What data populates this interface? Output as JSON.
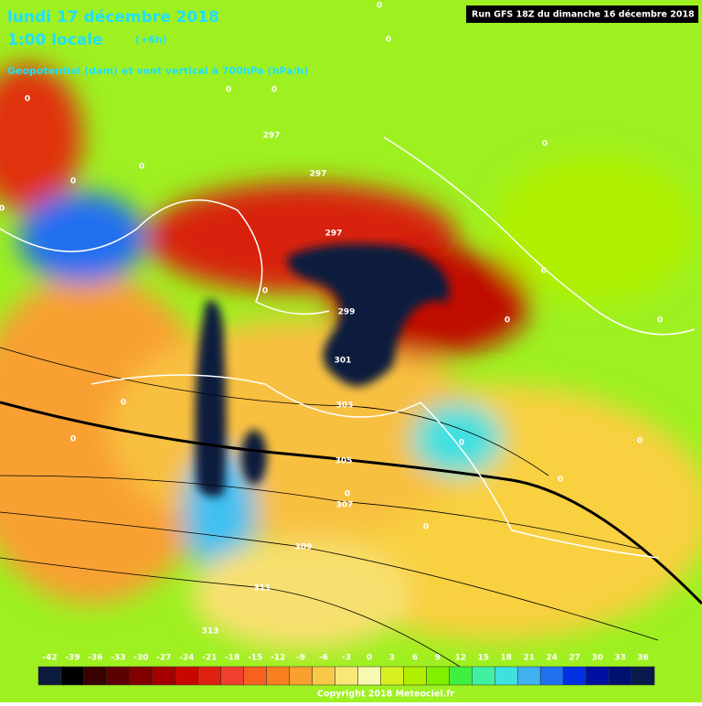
{
  "header": {
    "date": "lundi 17 décembre 2018",
    "time": "1:00 locale",
    "offset": "(+6h)",
    "subtitle": "Geopotentiel (dam) et vent vertical à 700hPa (hPa/h)",
    "run": "Run GFS 18Z du dimanche 16 décembre 2018"
  },
  "map": {
    "contour_labels": [
      297,
      297,
      297,
      299,
      301,
      303,
      305,
      307,
      309,
      311,
      313
    ],
    "zero_labels": [
      0,
      0,
      0,
      0,
      0,
      0,
      0,
      0,
      0,
      0,
      0,
      0,
      0,
      0,
      0,
      0,
      0,
      0,
      0,
      0
    ]
  },
  "colorbar": {
    "labels": [
      -42,
      -39,
      -36,
      -33,
      -30,
      -27,
      -24,
      -21,
      -18,
      -15,
      -12,
      -9,
      -6,
      -3,
      0,
      3,
      6,
      9,
      12,
      15,
      18,
      21,
      24,
      27,
      30,
      33,
      36
    ],
    "colors": [
      "#0c1a3e",
      "#000000",
      "#3a0000",
      "#5c0000",
      "#800000",
      "#a40000",
      "#c80800",
      "#e02010",
      "#f04030",
      "#f86020",
      "#f88020",
      "#f8a030",
      "#f8c848",
      "#f8e878",
      "#f8f8b0",
      "#d8f020",
      "#b0f000",
      "#80f000",
      "#40f040",
      "#40f0a0",
      "#40e0e0",
      "#40b0f0",
      "#2070f0",
      "#0030e0",
      "#0010a0",
      "#001070",
      "#0a1a4a"
    ]
  },
  "footer": {
    "copyright": "Copyright 2018 Meteociel.fr"
  }
}
